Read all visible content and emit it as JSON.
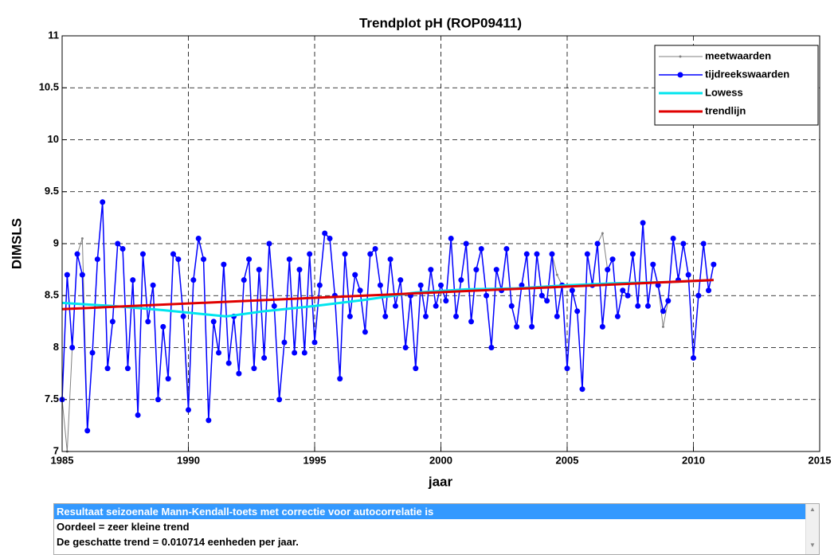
{
  "chart_data": {
    "type": "line",
    "title": "Trendplot pH (ROP09411)",
    "xlabel": "jaar",
    "ylabel": "DIMSLS",
    "xlim": [
      1985,
      2015
    ],
    "xticks": [
      1985,
      1990,
      1995,
      2000,
      2005,
      2010,
      2015
    ],
    "ylim": [
      7,
      11
    ],
    "yticks": [
      7,
      7.5,
      8,
      8.5,
      9,
      9.5,
      10,
      10.5,
      11
    ],
    "grid": true,
    "legend": "upper right",
    "x": [
      1985.0,
      1985.2,
      1985.4,
      1985.6,
      1985.8,
      1986.0,
      1986.2,
      1986.4,
      1986.6,
      1986.8,
      1987.0,
      1987.2,
      1987.4,
      1987.6,
      1987.8,
      1988.0,
      1988.2,
      1988.4,
      1988.6,
      1988.8,
      1989.0,
      1989.2,
      1989.4,
      1989.6,
      1989.8,
      1990.0,
      1990.2,
      1990.4,
      1990.6,
      1990.8,
      1991.0,
      1991.2,
      1991.4,
      1991.6,
      1991.8,
      1992.0,
      1992.2,
      1992.4,
      1992.6,
      1992.8,
      1993.0,
      1993.2,
      1993.4,
      1993.6,
      1993.8,
      1994.0,
      1994.2,
      1994.4,
      1994.6,
      1994.8,
      1995.0,
      1995.2,
      1995.4,
      1995.6,
      1995.8,
      1996.0,
      1996.2,
      1996.4,
      1996.6,
      1996.8,
      1997.0,
      1997.2,
      1997.4,
      1997.6,
      1997.8,
      1998.0,
      1998.2,
      1998.4,
      1998.6,
      1998.8,
      1999.0,
      1999.2,
      1999.4,
      1999.6,
      1999.8,
      2000.0,
      2000.2,
      2000.4,
      2000.6,
      2000.8,
      2001.0,
      2001.2,
      2001.4,
      2001.6,
      2001.8,
      2002.0,
      2002.2,
      2002.4,
      2002.6,
      2002.8,
      2003.0,
      2003.2,
      2003.4,
      2003.6,
      2003.8,
      2004.0,
      2004.2,
      2004.4,
      2004.6,
      2004.8,
      2005.0,
      2005.2,
      2005.4,
      2005.6,
      2005.8,
      2006.0,
      2006.2,
      2006.4,
      2006.6,
      2006.8,
      2007.0,
      2007.2,
      2007.4,
      2007.6,
      2007.8,
      2008.0,
      2008.2,
      2008.4,
      2008.6,
      2008.8,
      2009.0,
      2009.2,
      2009.4,
      2009.6,
      2009.8,
      2010.0,
      2010.2,
      2010.4,
      2010.6,
      2010.8
    ],
    "series": [
      {
        "name": "meetwaarden",
        "color": "#808080",
        "style": "thin",
        "values": [
          7.5,
          7.0,
          8.0,
          8.9,
          9.05,
          7.2,
          7.95,
          8.85,
          9.4,
          7.8,
          8.25,
          9.0,
          8.95,
          7.8,
          8.65,
          7.35,
          8.9,
          8.25,
          8.6,
          7.5,
          8.2,
          7.7,
          8.9,
          8.85,
          8.3,
          7.5,
          8.65,
          9.05,
          8.85,
          7.3,
          8.25,
          7.95,
          8.8,
          7.85,
          8.3,
          7.75,
          8.65,
          8.85,
          7.8,
          8.75,
          7.9,
          9.0,
          8.4,
          7.5,
          8.05,
          8.85,
          7.95,
          8.75,
          7.95,
          8.9,
          8.05,
          8.6,
          9.1,
          9.05,
          8.5,
          7.7,
          8.9,
          8.3,
          8.7,
          8.55,
          8.15,
          8.9,
          8.95,
          8.6,
          8.3,
          8.85,
          8.4,
          8.65,
          8.0,
          8.5,
          7.8,
          8.6,
          8.3,
          8.75,
          8.4,
          8.6,
          8.45,
          9.05,
          8.3,
          8.65,
          9.0,
          8.25,
          8.75,
          8.95,
          8.5,
          8.0,
          8.75,
          8.55,
          8.95,
          8.4,
          8.2,
          8.6,
          8.9,
          8.2,
          8.9,
          8.5,
          8.45,
          8.9,
          8.7,
          8.6,
          7.8,
          8.55,
          8.35,
          7.6,
          8.9,
          8.6,
          9.0,
          9.1,
          8.75,
          8.85,
          8.3,
          8.55,
          8.5,
          8.9,
          8.4,
          9.2,
          8.4,
          8.8,
          8.6,
          8.2,
          8.45,
          9.05,
          8.65,
          9.0,
          8.7,
          7.9,
          8.5,
          9.0,
          8.55,
          8.8
        ]
      },
      {
        "name": "tijdreekswaarden",
        "color": "#0000ff",
        "style": "dots",
        "values": [
          7.5,
          8.7,
          8.0,
          8.9,
          8.7,
          7.2,
          7.95,
          8.85,
          9.4,
          7.8,
          8.25,
          9.0,
          8.95,
          7.8,
          8.65,
          7.35,
          8.9,
          8.25,
          8.6,
          7.5,
          8.2,
          7.7,
          8.9,
          8.85,
          8.3,
          7.4,
          8.65,
          9.05,
          8.85,
          7.3,
          8.25,
          7.95,
          8.8,
          7.85,
          8.3,
          7.75,
          8.65,
          8.85,
          7.8,
          8.75,
          7.9,
          9.0,
          8.4,
          7.5,
          8.05,
          8.85,
          7.95,
          8.75,
          7.95,
          8.9,
          8.05,
          8.6,
          9.1,
          9.05,
          8.5,
          7.7,
          8.9,
          8.3,
          8.7,
          8.55,
          8.15,
          8.9,
          8.95,
          8.6,
          8.3,
          8.85,
          8.4,
          8.65,
          8.0,
          8.5,
          7.8,
          8.6,
          8.3,
          8.75,
          8.4,
          8.6,
          8.45,
          9.05,
          8.3,
          8.65,
          9.0,
          8.25,
          8.75,
          8.95,
          8.5,
          8.0,
          8.75,
          8.55,
          8.95,
          8.4,
          8.2,
          8.6,
          8.9,
          8.2,
          8.9,
          8.5,
          8.45,
          8.9,
          8.3,
          8.6,
          7.8,
          8.55,
          8.35,
          7.6,
          8.9,
          8.6,
          9.0,
          8.2,
          8.75,
          8.85,
          8.3,
          8.55,
          8.5,
          8.9,
          8.4,
          9.2,
          8.4,
          8.8,
          8.6,
          8.35,
          8.45,
          9.05,
          8.65,
          9.0,
          8.7,
          7.9,
          8.5,
          9.0,
          8.55,
          8.8
        ]
      },
      {
        "name": "Lowess",
        "color": "#00e5ee",
        "style": "thick",
        "x": [
          1985,
          1987,
          1989,
          1991.5,
          1993,
          1995,
          1997,
          1999,
          2001,
          2003,
          2005,
          2007,
          2009,
          2010.8
        ],
        "values": [
          8.43,
          8.4,
          8.36,
          8.3,
          8.35,
          8.4,
          8.46,
          8.53,
          8.56,
          8.57,
          8.6,
          8.62,
          8.63,
          8.65
        ]
      },
      {
        "name": "trendlijn",
        "color": "#e00000",
        "style": "thick",
        "x": [
          1985,
          2010.8
        ],
        "values": [
          8.37,
          8.65
        ]
      }
    ]
  },
  "results": {
    "lines": [
      "Resultaat seizoenale Mann-Kendall-toets met correctie voor autocorrelatie is",
      "Oordeel = zeer kleine trend",
      "De geschatte trend = 0.010714 eenheden per jaar."
    ]
  }
}
